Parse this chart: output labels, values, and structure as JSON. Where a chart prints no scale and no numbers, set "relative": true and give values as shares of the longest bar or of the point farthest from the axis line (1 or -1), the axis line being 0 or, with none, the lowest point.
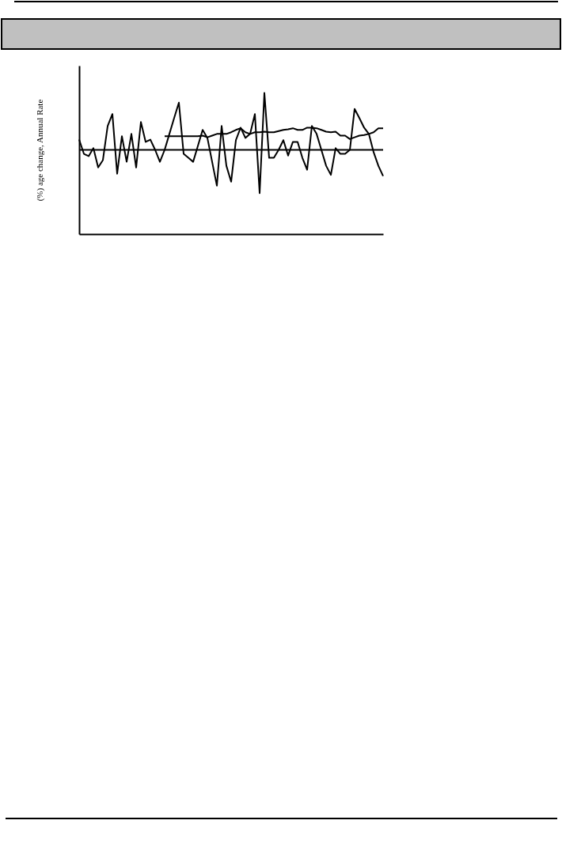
{
  "chart_data": {
    "type": "line",
    "ylabel": "(%) age change, Annual Rate",
    "relative": true,
    "categories": [
      null,
      null,
      null,
      null,
      null,
      null,
      null,
      null,
      null,
      null,
      null,
      null,
      null,
      null,
      null,
      null,
      null,
      null,
      null,
      null,
      null,
      null,
      null,
      null,
      null,
      null,
      null,
      null,
      null,
      null,
      null,
      null,
      null,
      null,
      null,
      null,
      null,
      null,
      null,
      null,
      null,
      null,
      null,
      null,
      null,
      null,
      null,
      null,
      null,
      null,
      null,
      null,
      null,
      null,
      null,
      null,
      null,
      null,
      null,
      null,
      null,
      null,
      null,
      null,
      null
    ],
    "series": [
      {
        "color": "#000000",
        "values": [
          0.18,
          -0.07,
          -0.11,
          0.03,
          -0.31,
          -0.18,
          0.42,
          0.63,
          -0.42,
          0.24,
          -0.21,
          0.28,
          -0.31,
          0.49,
          0.14,
          0.18,
          0,
          -0.21,
          0,
          0.28,
          0.56,
          0.83,
          -0.07,
          -0.14,
          -0.21,
          0.07,
          0.35,
          0.21,
          -0.21,
          -0.63,
          0.42,
          -0.28,
          -0.56,
          0.17,
          0.39,
          0.21,
          0.28,
          0.63,
          -0.76,
          1,
          -0.14,
          -0.14,
          0,
          0.17,
          -0.1,
          0.14,
          0.14,
          -0.14,
          -0.35,
          0.42,
          0.28,
          0,
          -0.28,
          -0.44,
          0.03,
          -0.07,
          -0.07,
          0,
          0.72,
          0.56,
          0.39,
          0.28,
          -0.04,
          -0.28,
          -0.46
        ]
      },
      {
        "color": "#000000",
        "values": [
          null,
          null,
          null,
          null,
          null,
          null,
          null,
          null,
          null,
          null,
          null,
          null,
          null,
          null,
          null,
          null,
          null,
          null,
          0.24,
          0.24,
          0.24,
          0.24,
          0.24,
          0.24,
          0.24,
          0.24,
          0.25,
          0.22,
          0.25,
          0.28,
          0.28,
          0.28,
          0.31,
          0.35,
          0.38,
          0.31,
          0.28,
          0.31,
          0.31,
          0.32,
          0.31,
          0.31,
          0.33,
          0.35,
          0.36,
          0.38,
          0.35,
          0.35,
          0.39,
          0.39,
          0.38,
          0.35,
          0.32,
          0.31,
          0.32,
          0.25,
          0.25,
          0.19,
          0.22,
          0.25,
          0.26,
          0.28,
          0.31,
          0.38,
          0.38
        ]
      }
    ],
    "ref_lines": [
      {
        "axis": "y",
        "value": 0,
        "color": "#000000"
      }
    ],
    "line_style": "solid",
    "marker": "none"
  }
}
